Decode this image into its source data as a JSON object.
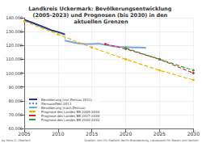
{
  "chart_data": {
    "type": "line",
    "title": "Landkreis Uckermark: Bevölkerungsentwicklung (2005-2023) und Prognosen (bis 2030) in den aktuellen Grenzen",
    "annotations": [
      "by Hans G. Oberlack",
      "Quellen: Amt für Statistik Berlin-Brandenburg, Landesamt für Bauen und Verkehr"
    ],
    "xlim": [
      2005,
      2030
    ],
    "xticks": [
      2005,
      2010,
      2015,
      2020,
      2025,
      2030
    ],
    "ylim": [
      60000,
      140000
    ],
    "yticks": [
      {
        "value": 60000,
        "label": "60.000"
      },
      {
        "value": 70000,
        "label": "70.000"
      },
      {
        "value": 80000,
        "label": "80.000"
      },
      {
        "value": 90000,
        "label": "90.000"
      },
      {
        "value": 100000,
        "label": "100.000"
      },
      {
        "value": 110000,
        "label": "110.000"
      },
      {
        "value": 120000,
        "label": "120.000"
      },
      {
        "value": 130000,
        "label": "130.000"
      },
      {
        "value": 140000,
        "label": "140.000"
      }
    ],
    "grid": true,
    "legend": "lower left",
    "series": [
      {
        "name": "Bevölkerung (vor Zensus 2011)",
        "color": "#1f3c88",
        "line_style": "solid",
        "marker": "none",
        "x": [
          2005,
          2006,
          2007,
          2008,
          2009,
          2010,
          2011
        ],
        "values": [
          138500,
          136800,
          134900,
          133000,
          131000,
          129700,
          128000
        ]
      },
      {
        "name": "Zensuseffekt 2011",
        "color": "#6a8fd0",
        "line_style": "dotted",
        "marker": "none",
        "x": [
          2011,
          2011
        ],
        "values": [
          128000,
          123500
        ]
      },
      {
        "name": "Bevölkerung (nach Zensus)",
        "color": "#7aa6e0",
        "line_style": "solid",
        "marker": "none",
        "x": [
          2011,
          2012,
          2013,
          2014,
          2015,
          2016,
          2017,
          2018,
          2019,
          2020,
          2021,
          2022,
          2023
        ],
        "values": [
          123500,
          122500,
          121500,
          121000,
          121000,
          121300,
          120500,
          119600,
          119000,
          118800,
          118500,
          118600,
          118300
        ]
      },
      {
        "name": "Prognose des Landes BB 2005-2030",
        "color": "#f0b400",
        "line_style": "dashed",
        "marker": "circle",
        "x": [
          2005,
          2010,
          2015,
          2020,
          2025,
          2030
        ],
        "values": [
          137500,
          128000,
          118500,
          110000,
          102000,
          95000
        ]
      },
      {
        "name": "Prognose des Landes BB 2017-2030",
        "color": "#d62728",
        "line_style": "dashed",
        "marker": "circle",
        "x": [
          2017,
          2020,
          2025,
          2030
        ],
        "values": [
          121000,
          117500,
          110000,
          100000
        ]
      },
      {
        "name": "Prognose des Landes BB 2020-2030",
        "color": "#2ca02c",
        "line_style": "dashed",
        "marker": "circle",
        "x": [
          2020,
          2025,
          2030
        ],
        "values": [
          118000,
          110000,
          102000
        ]
      }
    ]
  }
}
